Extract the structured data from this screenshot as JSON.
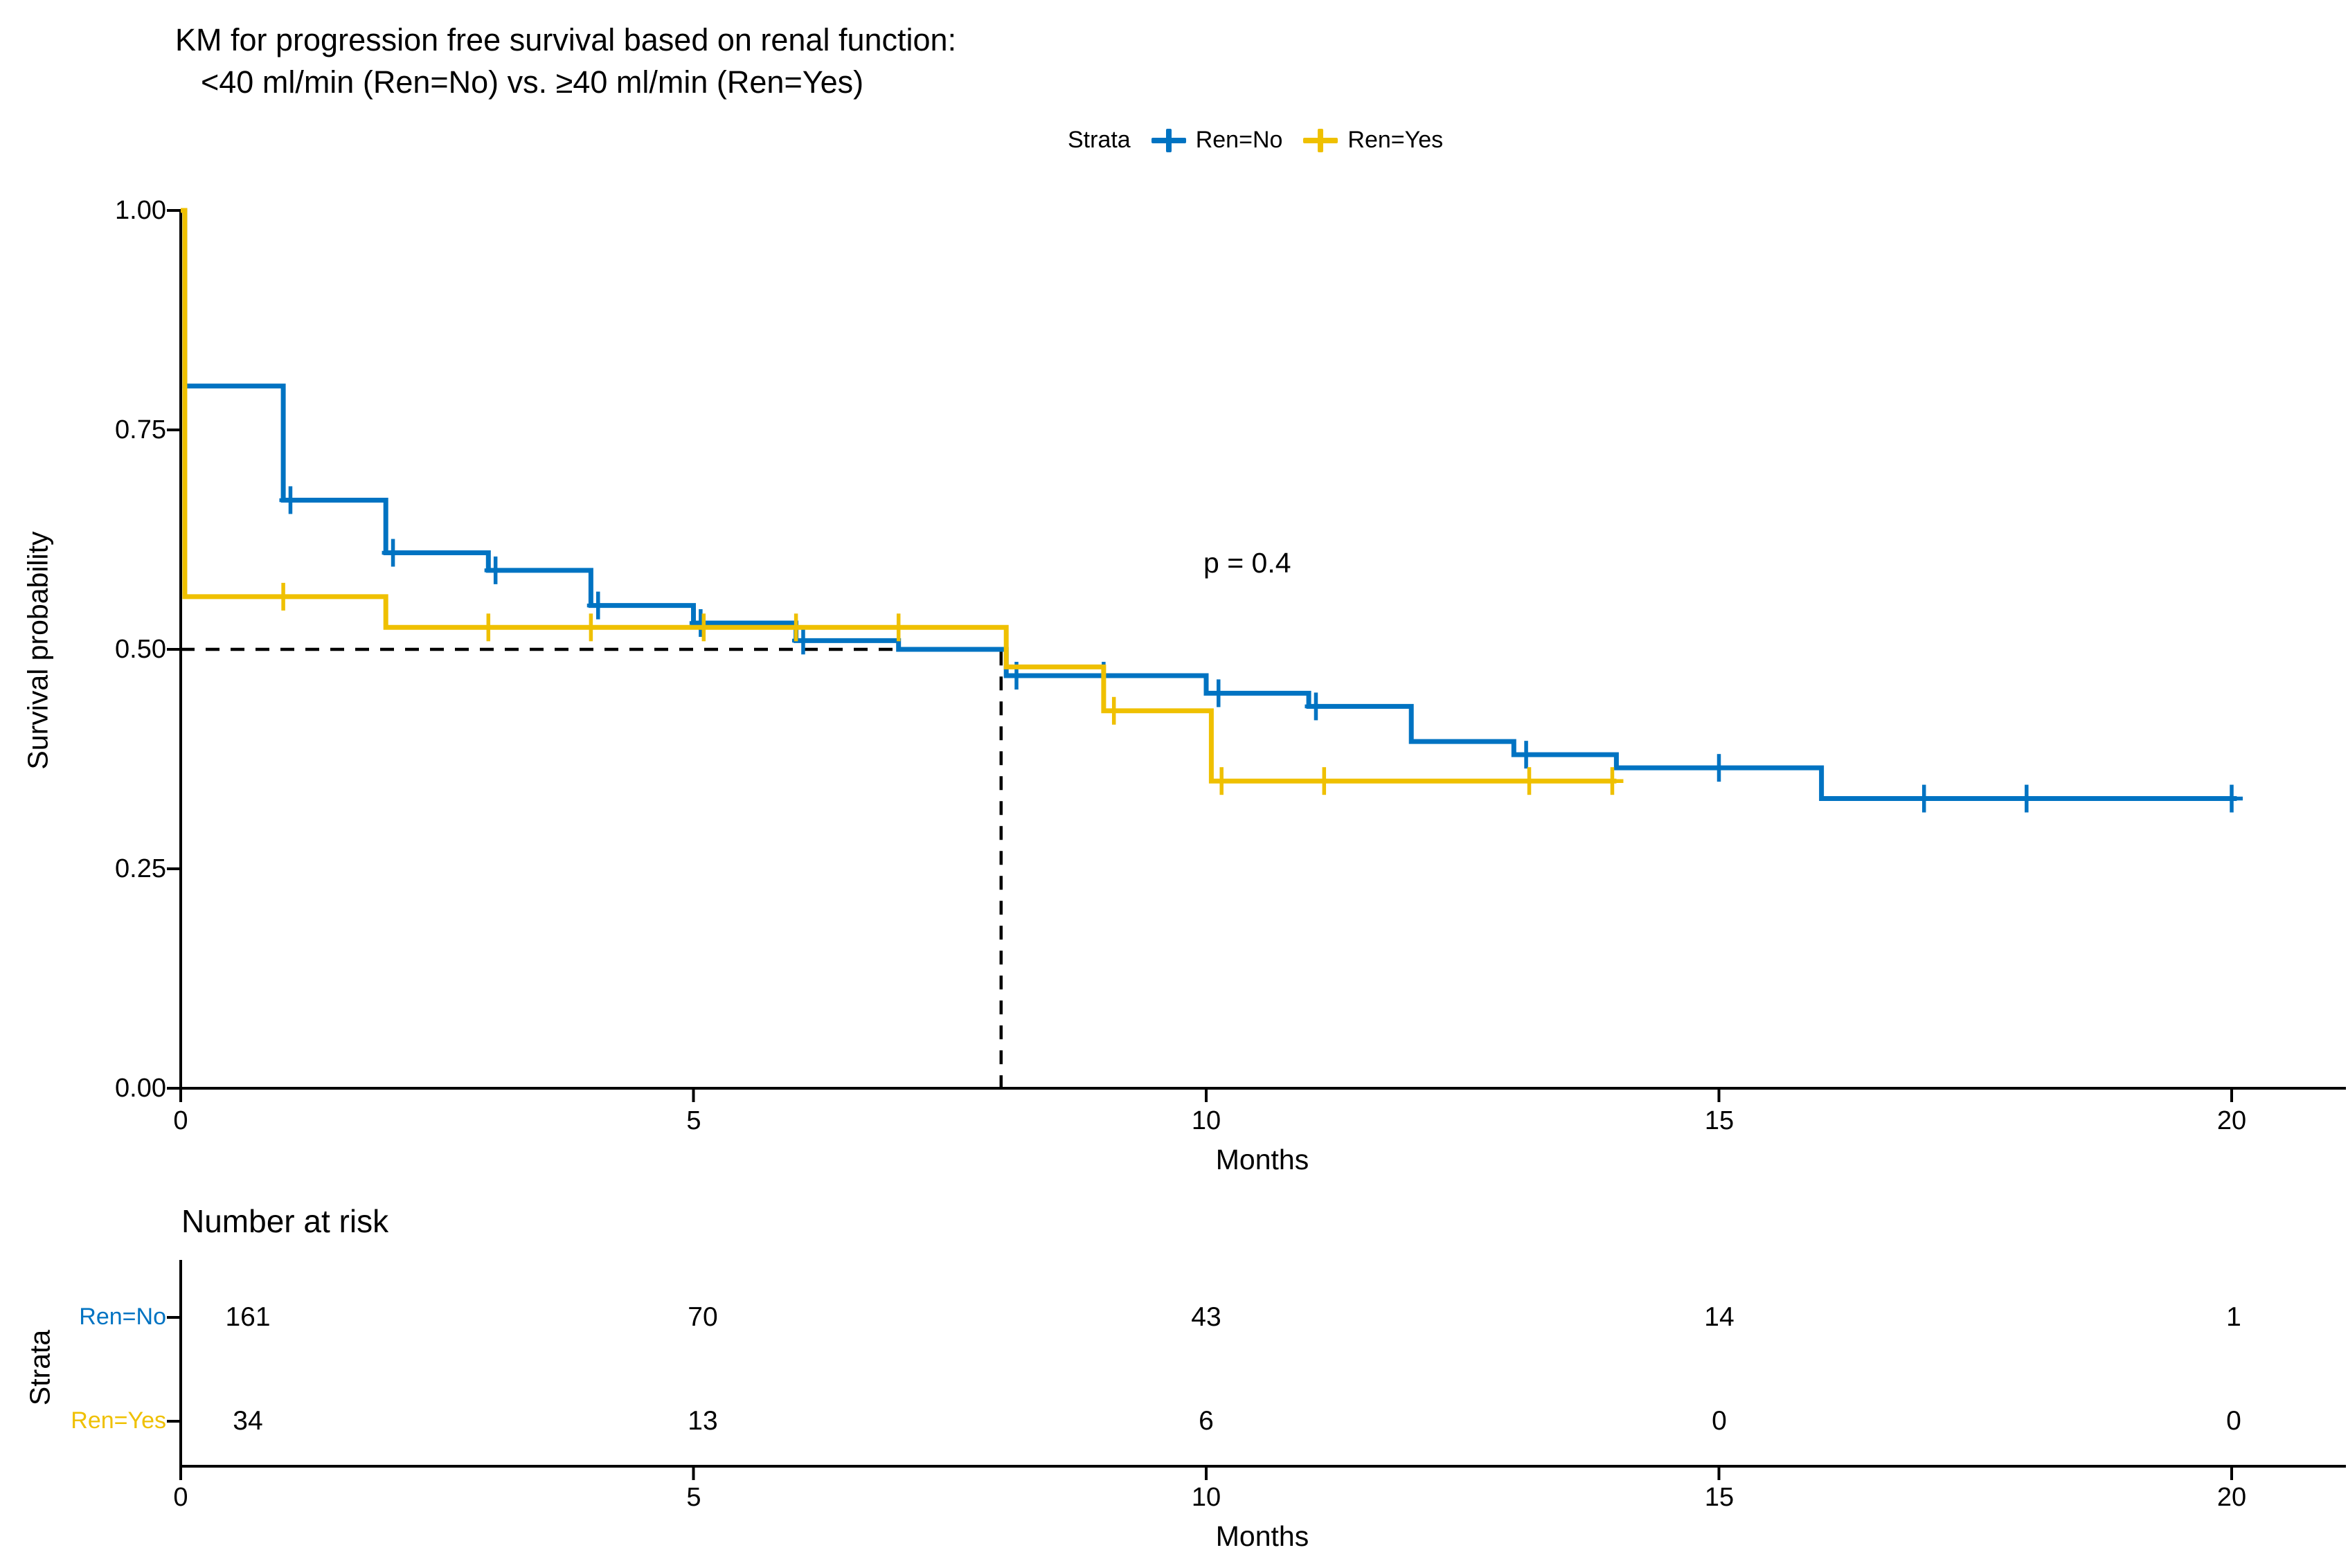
{
  "title": {
    "line1": "KM for progression free survival based on renal function:",
    "line2": "<40 ml/min (Ren=No) vs. ≥40 ml/min (Ren=Yes)"
  },
  "legend": {
    "label": "Strata",
    "items": [
      {
        "label": "Ren=No",
        "color": "#0073C2"
      },
      {
        "label": "Ren=Yes",
        "color": "#EFC000"
      }
    ]
  },
  "pvalue_text": "p = 0.4",
  "axes": {
    "x_label": "Months",
    "y_label": "Survival probability",
    "x_ticks": [
      0,
      5,
      10,
      15,
      20
    ],
    "x_tick_labels": [
      "0",
      "5",
      "10",
      "15",
      "20"
    ],
    "y_ticks": [
      1.0,
      0.75,
      0.5,
      0.25,
      0.0
    ],
    "y_tick_labels": [
      "1.00",
      "0.75",
      "0.50",
      "0.25",
      "0.00"
    ]
  },
  "chart_data": {
    "type": "line",
    "subtype": "kaplan-meier-step",
    "title": "KM for progression free survival based on renal function: <40 ml/min (Ren=No) vs. ≥40 ml/min (Ren=Yes)",
    "xlabel": "Months",
    "ylabel": "Survival probability",
    "xlim": [
      0,
      21
    ],
    "ylim": [
      0,
      1
    ],
    "grid": false,
    "legend_position": "top",
    "pvalue": 0.4,
    "median_line": {
      "x": 8,
      "y": 0.5
    },
    "series": [
      {
        "name": "Ren=No",
        "color": "#0073C2",
        "steps": [
          [
            0,
            1.0
          ],
          [
            0.04,
            0.8
          ],
          [
            1,
            0.67
          ],
          [
            2,
            0.61
          ],
          [
            3,
            0.59
          ],
          [
            4,
            0.55
          ],
          [
            5,
            0.53
          ],
          [
            6,
            0.51
          ],
          [
            7,
            0.5
          ],
          [
            8.05,
            0.47
          ],
          [
            10,
            0.45
          ],
          [
            11,
            0.435
          ],
          [
            12,
            0.395
          ],
          [
            13,
            0.38
          ],
          [
            14,
            0.365
          ],
          [
            16,
            0.33
          ]
        ],
        "end": 20.05,
        "censor_times": [
          1.07,
          2.07,
          3.07,
          4.07,
          5.07,
          6.07,
          8.15,
          9,
          10.12,
          11.07,
          13.12,
          15,
          17,
          18,
          20
        ]
      },
      {
        "name": "Ren=Yes",
        "color": "#EFC000",
        "steps": [
          [
            0,
            1.0
          ],
          [
            0.04,
            0.56
          ],
          [
            2,
            0.525
          ],
          [
            8.05,
            0.48
          ],
          [
            9,
            0.43
          ],
          [
            10.05,
            0.35
          ]
        ],
        "end": 14,
        "censor_times": [
          1,
          3,
          4,
          5.1,
          6,
          7,
          9.1,
          10.15,
          11.15,
          13.15,
          13.96
        ]
      }
    ]
  },
  "risk_table": {
    "title": "Number at risk",
    "y_label": "Strata",
    "x_label": "Months",
    "x_tick_labels": [
      "0",
      "5",
      "10",
      "15",
      "20"
    ],
    "rows": [
      {
        "label": "Ren=No",
        "color": "#0073C2",
        "values": [
          "161",
          "70",
          "43",
          "14",
          "1"
        ]
      },
      {
        "label": "Ren=Yes",
        "color": "#EFC000",
        "values": [
          "34",
          "13",
          "6",
          "0",
          "0"
        ]
      }
    ]
  }
}
